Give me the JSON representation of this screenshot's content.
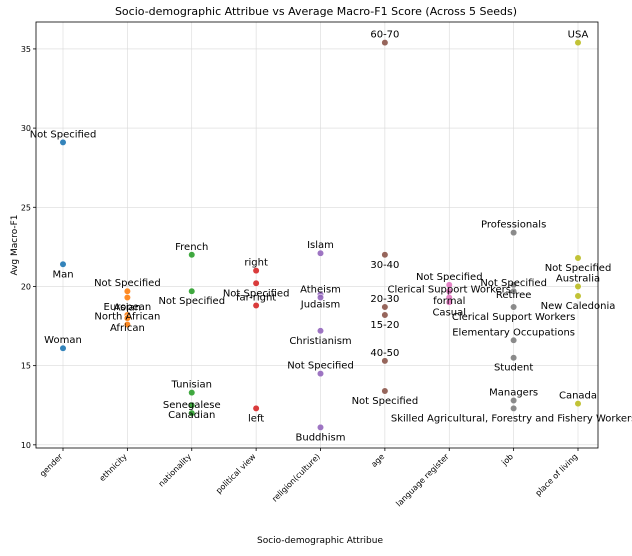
{
  "chart_data": {
    "type": "scatter",
    "title": "Socio-demographic Attribue vs Average Macro-F1 Score (Across 5 Seeds)",
    "xlabel": "Socio-demographic Attribue",
    "ylabel": "Avg Macro-F1",
    "categories": [
      "gender",
      "ethnicity",
      "nationality",
      "political view",
      "religion(culture)",
      "age",
      "language register",
      "job",
      "place of living"
    ],
    "ylim": [
      9.8,
      36.7
    ],
    "yticks": [
      10,
      15,
      20,
      25,
      30,
      35
    ],
    "grid": true,
    "legend": "none",
    "colors": [
      "#1f77b4",
      "#ff7f0e",
      "#2ca02c",
      "#d62728",
      "#9467bd",
      "#8c564b",
      "#e377c2",
      "#7f7f7f",
      "#bcbd22"
    ],
    "series": [
      {
        "category": "gender",
        "points": [
          {
            "label": "Not Specified",
            "y": 29.1
          },
          {
            "label": "Man",
            "y": 21.4
          },
          {
            "label": "Woman",
            "y": 16.1
          }
        ]
      },
      {
        "category": "ethnicity",
        "points": [
          {
            "label": "Not Specified",
            "y": 19.7
          },
          {
            "label": "Asian",
            "y": 19.3
          },
          {
            "label": "European",
            "y": 18.2
          },
          {
            "label": "African",
            "y": 18.0
          },
          {
            "label": "North African",
            "y": 17.6
          }
        ]
      },
      {
        "category": "nationality",
        "points": [
          {
            "label": "French",
            "y": 22.0
          },
          {
            "label": "Not Specified",
            "y": 19.7
          },
          {
            "label": "Tunisian",
            "y": 13.3
          },
          {
            "label": "Canadian",
            "y": 12.5
          },
          {
            "label": "Senegalese",
            "y": 12.0
          }
        ]
      },
      {
        "category": "political view",
        "points": [
          {
            "label": "right",
            "y": 21.0
          },
          {
            "label": "Not Specified",
            "y": 20.2
          },
          {
            "label": "far-right",
            "y": 18.8
          },
          {
            "label": "left",
            "y": 12.3
          }
        ]
      },
      {
        "category": "religion(culture)",
        "points": [
          {
            "label": "Islam",
            "y": 22.1
          },
          {
            "label": "Judaism",
            "y": 19.5
          },
          {
            "label": "Atheism",
            "y": 19.3
          },
          {
            "label": "Christianism",
            "y": 17.2
          },
          {
            "label": "Not Specified",
            "y": 14.5
          },
          {
            "label": "Buddhism",
            "y": 11.1
          }
        ]
      },
      {
        "category": "age",
        "points": [
          {
            "label": "60-70",
            "y": 35.4
          },
          {
            "label": "30-40",
            "y": 22.0
          },
          {
            "label": "20-30",
            "y": 18.7
          },
          {
            "label": "15-20",
            "y": 18.2
          },
          {
            "label": "40-50",
            "y": 15.3
          },
          {
            "label": "Not Specified",
            "y": 13.4
          }
        ]
      },
      {
        "category": "language register",
        "points": [
          {
            "label": "Not Specified",
            "y": 20.1
          },
          {
            "label": "formal",
            "y": 19.7
          },
          {
            "label": "Clerical Support Workers",
            "y": 19.3
          },
          {
            "label": "Casual",
            "y": 19.0
          }
        ]
      },
      {
        "category": "job",
        "points": [
          {
            "label": "Professionals",
            "y": 23.4
          },
          {
            "label": "Retiree",
            "y": 20.1
          },
          {
            "label": "Not Specified",
            "y": 19.7
          },
          {
            "label": "Clerical Support Workers",
            "y": 18.7
          },
          {
            "label": "Elementary Occupations",
            "y": 16.6
          },
          {
            "label": "Student",
            "y": 15.5
          },
          {
            "label": "Managers",
            "y": 12.8
          },
          {
            "label": "Skilled Agricultural, Forestry and Fishery Workers",
            "y": 12.3
          }
        ]
      },
      {
        "category": "place of living",
        "points": [
          {
            "label": "USA",
            "y": 35.4
          },
          {
            "label": "Not Specified",
            "y": 21.8
          },
          {
            "label": "Australia",
            "y": 20.0
          },
          {
            "label": "New Caledonia",
            "y": 19.4
          },
          {
            "label": "Canada",
            "y": 12.6
          }
        ]
      }
    ]
  }
}
